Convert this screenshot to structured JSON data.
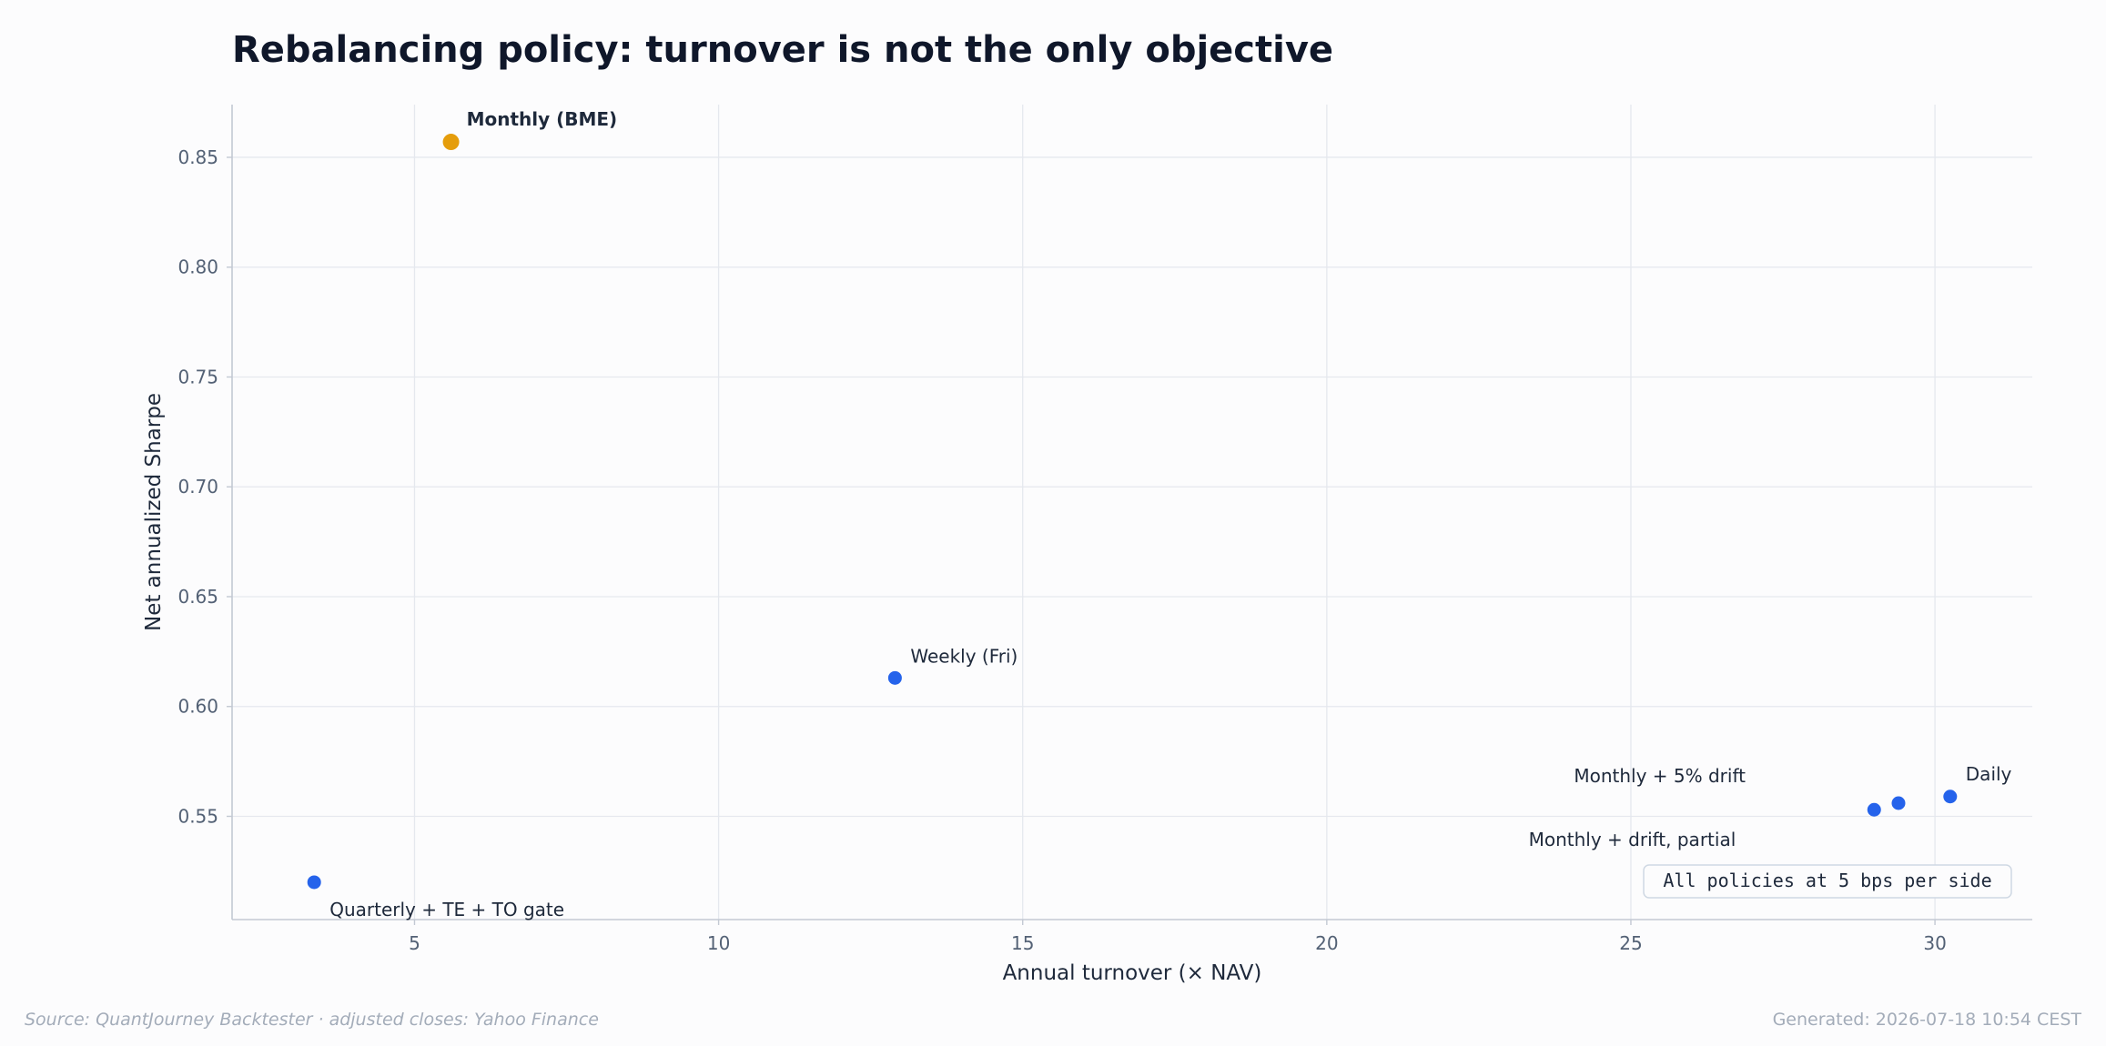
{
  "chart_data": {
    "type": "scatter",
    "title": "Rebalancing policy: turnover is not the only objective",
    "xlabel": "Annual turnover (× NAV)",
    "ylabel": "Net annualized Sharpe",
    "xlim": [
      2,
      31.6
    ],
    "ylim": [
      0.503,
      0.874
    ],
    "xticks": [
      5,
      10,
      15,
      20,
      25,
      30
    ],
    "yticks": [
      0.55,
      0.6,
      0.65,
      0.7,
      0.75,
      0.8,
      0.85
    ],
    "grid": true,
    "points": [
      {
        "label": "Monthly (BME)",
        "x": 5.6,
        "y": 0.857,
        "highlight": true
      },
      {
        "label": "Weekly (Fri)",
        "x": 12.9,
        "y": 0.613,
        "highlight": false
      },
      {
        "label": "Quarterly + TE + TO gate",
        "x": 3.35,
        "y": 0.52,
        "highlight": false
      },
      {
        "label": "Monthly + drift, partial",
        "x": 29.0,
        "y": 0.553,
        "highlight": false
      },
      {
        "label": "Monthly + 5% drift",
        "x": 29.4,
        "y": 0.556,
        "highlight": false
      },
      {
        "label": "Daily",
        "x": 30.25,
        "y": 0.559,
        "highlight": false
      }
    ],
    "annotation": "All policies at 5 bps per side",
    "colors": {
      "highlight": "#e59d0b",
      "point": "#2563eb",
      "text": "#1e293b",
      "tick": "#536175",
      "grid": "#e5e8ee",
      "axis": "#c3c9d3"
    }
  },
  "footer": {
    "source": "Source: QuantJourney Backtester · adjusted closes: Yahoo Finance",
    "generated": "Generated: 2026-07-18 10:54 CEST"
  }
}
